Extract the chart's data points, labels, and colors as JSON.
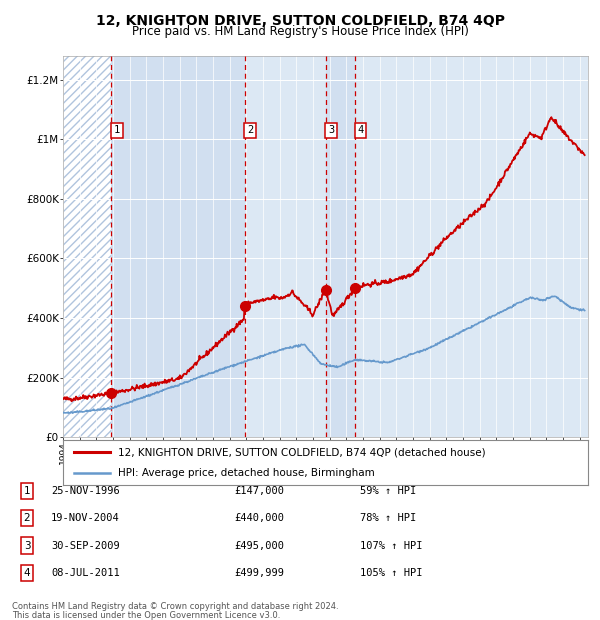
{
  "title": "12, KNIGHTON DRIVE, SUTTON COLDFIELD, B74 4QP",
  "subtitle": "Price paid vs. HM Land Registry's House Price Index (HPI)",
  "legend_red": "12, KNIGHTON DRIVE, SUTTON COLDFIELD, B74 4QP (detached house)",
  "legend_blue": "HPI: Average price, detached house, Birmingham",
  "footer1": "Contains HM Land Registry data © Crown copyright and database right 2024.",
  "footer2": "This data is licensed under the Open Government Licence v3.0.",
  "transactions": [
    {
      "num": 1,
      "date": "25-NOV-1996",
      "price": 147000,
      "pct": "59%",
      "dir": "↑",
      "year": 1996.9
    },
    {
      "num": 2,
      "date": "19-NOV-2004",
      "price": 440000,
      "pct": "78%",
      "dir": "↑",
      "year": 2004.89
    },
    {
      "num": 3,
      "date": "30-SEP-2009",
      "price": 495000,
      "pct": "107%",
      "dir": "↑",
      "year": 2009.75
    },
    {
      "num": 4,
      "date": "08-JUL-2011",
      "price": 499999,
      "pct": "105%",
      "dir": "↑",
      "year": 2011.52
    }
  ],
  "xlim": [
    1994.0,
    2025.5
  ],
  "ylim": [
    0,
    1280000
  ],
  "yticks": [
    0,
    200000,
    400000,
    600000,
    800000,
    1000000,
    1200000
  ],
  "ytick_labels": [
    "£0",
    "£200K",
    "£400K",
    "£600K",
    "£800K",
    "£1M",
    "£1.2M"
  ],
  "plot_bg": "#dce8f4",
  "hatch_bg": "#ffffff",
  "hatch_color": "#b0c4de",
  "grid_color": "#ffffff",
  "red_color": "#cc0000",
  "blue_color": "#6699cc",
  "dashed_color": "#cc0000",
  "shade_color": "#dce8f8",
  "title_fontsize": 10,
  "subtitle_fontsize": 8.5
}
